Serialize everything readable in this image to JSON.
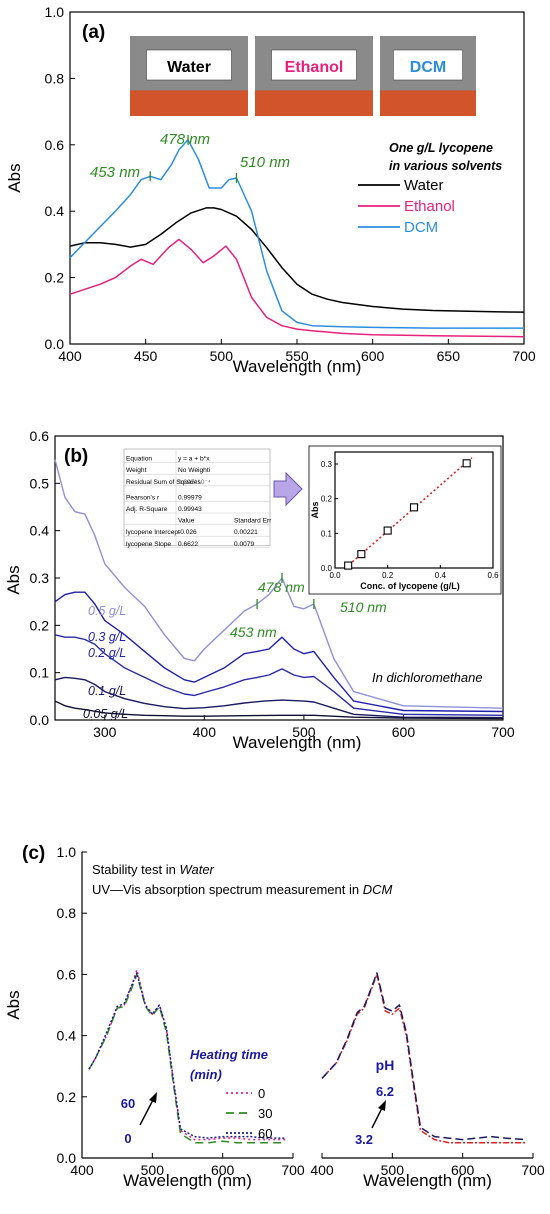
{
  "chart_data": [
    {
      "type": "line",
      "panel_label": "(a)",
      "xlabel": "Wavelength (nm)",
      "ylabel": "Abs",
      "xlim": [
        400,
        700
      ],
      "ylim": [
        0,
        1.0
      ],
      "x_ticks": [
        "400",
        "450",
        "500",
        "550",
        "600",
        "650",
        "700"
      ],
      "y_ticks": [
        "0.0",
        "0.2",
        "0.4",
        "0.6",
        "0.8",
        "1.0"
      ],
      "photo_labels": [
        "Water",
        "Ethanol",
        "DCM"
      ],
      "legend_title": [
        "One g/L lycopene",
        "in various solvents"
      ],
      "annotations": [
        "453 nm",
        "478 nm",
        "510 nm"
      ],
      "series": [
        {
          "name": "Water",
          "color": "#000000",
          "x": [
            400,
            410,
            420,
            430,
            440,
            450,
            460,
            470,
            480,
            490,
            495,
            500,
            510,
            520,
            530,
            540,
            550,
            560,
            570,
            580,
            600,
            620,
            640,
            660,
            680,
            700
          ],
          "y": [
            0.295,
            0.305,
            0.305,
            0.3,
            0.292,
            0.3,
            0.33,
            0.365,
            0.395,
            0.41,
            0.41,
            0.405,
            0.385,
            0.345,
            0.29,
            0.23,
            0.18,
            0.15,
            0.135,
            0.125,
            0.113,
            0.105,
            0.101,
            0.099,
            0.097,
            0.096
          ]
        },
        {
          "name": "Ethanol",
          "color": "#e8217b",
          "x": [
            400,
            420,
            430,
            440,
            447,
            455,
            465,
            472,
            480,
            488,
            495,
            503,
            510,
            520,
            530,
            540,
            550,
            560,
            580,
            600,
            640,
            700
          ],
          "y": [
            0.15,
            0.18,
            0.2,
            0.235,
            0.255,
            0.24,
            0.29,
            0.315,
            0.285,
            0.245,
            0.265,
            0.295,
            0.255,
            0.14,
            0.08,
            0.055,
            0.045,
            0.04,
            0.032,
            0.028,
            0.025,
            0.022
          ]
        },
        {
          "name": "DCM",
          "color": "#2a8ee0",
          "x": [
            400,
            415,
            430,
            440,
            447,
            453,
            460,
            467,
            472,
            478,
            485,
            492,
            500,
            505,
            510,
            520,
            530,
            540,
            550,
            560,
            580,
            600,
            640,
            700
          ],
          "y": [
            0.26,
            0.33,
            0.4,
            0.45,
            0.495,
            0.505,
            0.495,
            0.54,
            0.585,
            0.615,
            0.555,
            0.47,
            0.47,
            0.495,
            0.5,
            0.4,
            0.22,
            0.1,
            0.065,
            0.055,
            0.052,
            0.05,
            0.048,
            0.048
          ]
        }
      ]
    },
    {
      "type": "line",
      "panel_label": "(b)",
      "xlabel": "Wavelength (nm)",
      "ylabel": "Abs",
      "xlim": [
        250,
        700
      ],
      "ylim": [
        0,
        0.6
      ],
      "x_ticks": [
        "300",
        "400",
        "500",
        "600",
        "700"
      ],
      "y_ticks": [
        "0.0",
        "0.1",
        "0.2",
        "0.3",
        "0.4",
        "0.5",
        "0.6"
      ],
      "annotations": [
        "453 nm",
        "478 nm",
        "510 nm",
        "In dichloromethane"
      ],
      "curve_labels": [
        "0.5 g/L",
        "0.3 g/L",
        "0.2 g/L",
        "0.1 g/L",
        "0.05 g/L"
      ],
      "series": [
        {
          "name": "0.5 g/L",
          "color": "#8f8fdc",
          "x": [
            250,
            260,
            270,
            280,
            290,
            300,
            320,
            340,
            360,
            380,
            390,
            400,
            420,
            440,
            453,
            465,
            478,
            490,
            500,
            510,
            530,
            550,
            600,
            700
          ],
          "y": [
            0.55,
            0.47,
            0.44,
            0.435,
            0.39,
            0.33,
            0.28,
            0.24,
            0.18,
            0.13,
            0.125,
            0.15,
            0.19,
            0.23,
            0.245,
            0.265,
            0.3,
            0.24,
            0.235,
            0.245,
            0.13,
            0.06,
            0.03,
            0.025
          ]
        },
        {
          "name": "0.3 g/L",
          "color": "#2020b0",
          "x": [
            250,
            260,
            270,
            280,
            290,
            300,
            320,
            340,
            360,
            380,
            390,
            400,
            420,
            440,
            453,
            465,
            478,
            490,
            500,
            510,
            530,
            550,
            600,
            700
          ],
          "y": [
            0.25,
            0.265,
            0.27,
            0.27,
            0.245,
            0.21,
            0.18,
            0.145,
            0.11,
            0.085,
            0.08,
            0.09,
            0.11,
            0.14,
            0.145,
            0.15,
            0.175,
            0.15,
            0.14,
            0.145,
            0.09,
            0.04,
            0.02,
            0.018
          ]
        },
        {
          "name": "0.2 g/L",
          "color": "#2a2aa8",
          "x": [
            250,
            260,
            270,
            280,
            290,
            300,
            320,
            340,
            360,
            380,
            390,
            400,
            420,
            440,
            453,
            465,
            478,
            490,
            500,
            510,
            530,
            550,
            600,
            700
          ],
          "y": [
            0.18,
            0.175,
            0.175,
            0.17,
            0.16,
            0.14,
            0.11,
            0.09,
            0.07,
            0.055,
            0.052,
            0.058,
            0.07,
            0.085,
            0.09,
            0.095,
            0.108,
            0.095,
            0.09,
            0.092,
            0.06,
            0.025,
            0.012,
            0.01
          ]
        },
        {
          "name": "0.1 g/L",
          "color": "#1a1a60",
          "x": [
            250,
            260,
            270,
            280,
            290,
            300,
            320,
            340,
            360,
            380,
            400,
            420,
            440,
            460,
            478,
            500,
            510,
            530,
            550,
            600,
            700
          ],
          "y": [
            0.085,
            0.09,
            0.088,
            0.085,
            0.075,
            0.06,
            0.045,
            0.035,
            0.028,
            0.024,
            0.026,
            0.03,
            0.036,
            0.04,
            0.042,
            0.04,
            0.038,
            0.025,
            0.012,
            0.006,
            0.005
          ]
        },
        {
          "name": "0.05 g/L",
          "color": "#101030",
          "x": [
            250,
            260,
            270,
            280,
            300,
            320,
            340,
            360,
            380,
            400,
            440,
            478,
            510,
            550,
            600,
            700
          ],
          "y": [
            0.04,
            0.03,
            0.025,
            0.022,
            0.015,
            0.012,
            0.01,
            0.009,
            0.008,
            0.008,
            0.009,
            0.01,
            0.01,
            0.006,
            0.004,
            0.003
          ]
        }
      ]
    },
    {
      "type": "scatter",
      "inset": true,
      "xlabel": "Conc. of lycopene (g/L)",
      "ylabel": "Abs",
      "xlim": [
        0,
        0.6
      ],
      "ylim": [
        0,
        0.3
      ],
      "x_ticks": [
        "0.0",
        "0.2",
        "0.4",
        "0.6"
      ],
      "y_ticks": [
        "0.0",
        "0.1",
        "0.2",
        "0.3"
      ],
      "points": {
        "x": [
          0.05,
          0.1,
          0.2,
          0.3,
          0.5
        ],
        "y": [
          0.007,
          0.04,
          0.108,
          0.175,
          0.302
        ]
      },
      "fit": {
        "intercept": -0.026,
        "slope": 0.6622,
        "x_range": [
          0.04,
          0.52
        ],
        "color": "#e02020"
      },
      "fit_table": [
        [
          "Equation",
          "y = a + b*x",
          ""
        ],
        [
          "Weight",
          "No Weighti",
          ""
        ],
        [
          "Residual Sum of Squares",
          "2.395*10⁻⁴",
          ""
        ],
        [
          "Pearson's r",
          "0.99979",
          ""
        ],
        [
          "Adj. R-Square",
          "0.99943",
          ""
        ],
        [
          "",
          "Value",
          "Standard Err"
        ],
        [
          "lycopene Intercept",
          "-0.026",
          "0.00221"
        ],
        [
          "lycopene Slope",
          "0.6622",
          "0.0079"
        ]
      ]
    },
    {
      "type": "line",
      "panel_label": "(c)",
      "ylabel": "Abs",
      "ylim": [
        0,
        1.0
      ],
      "y_ticks": [
        "0.0",
        "0.2",
        "0.4",
        "0.6",
        "0.8",
        "1.0"
      ],
      "header_lines": [
        [
          "Stability test in ",
          "Water"
        ],
        [
          "UV—Vis absorption spectrum measurement in ",
          "DCM"
        ]
      ],
      "subplots": [
        {
          "xlabel": "Wavelength (nm)",
          "xlim": [
            400,
            700
          ],
          "x_ticks": [
            "400",
            "500",
            "600",
            "700"
          ],
          "legend_title": [
            "Heating time",
            "(min)"
          ],
          "legend": [
            "0",
            "30",
            "60"
          ],
          "arrow_labels": [
            "60",
            "0"
          ],
          "series": [
            {
              "name": "0",
              "color": "#e8217b",
              "dash": "2,3",
              "x": [
                410,
                420,
                435,
                450,
                460,
                470,
                478,
                490,
                500,
                510,
                520,
                530,
                540,
                560,
                580,
                600,
                620,
                640,
                660,
                690
              ],
              "y": [
                0.29,
                0.33,
                0.4,
                0.49,
                0.5,
                0.56,
                0.615,
                0.5,
                0.47,
                0.5,
                0.42,
                0.25,
                0.09,
                0.06,
                0.06,
                0.065,
                0.065,
                0.06,
                0.06,
                0.06
              ]
            },
            {
              "name": "30",
              "color": "#2e8b22",
              "dash": "8,5",
              "x": [
                410,
                420,
                435,
                450,
                460,
                470,
                478,
                490,
                500,
                510,
                520,
                530,
                540,
                560,
                580,
                600,
                620,
                640,
                660,
                690
              ],
              "y": [
                0.29,
                0.33,
                0.4,
                0.49,
                0.495,
                0.55,
                0.6,
                0.495,
                0.465,
                0.495,
                0.41,
                0.24,
                0.08,
                0.05,
                0.05,
                0.055,
                0.05,
                0.05,
                0.05,
                0.05
              ]
            },
            {
              "name": "60",
              "color": "#1a1aa0",
              "dash": "2,2",
              "x": [
                410,
                420,
                435,
                450,
                460,
                470,
                478,
                490,
                500,
                510,
                520,
                530,
                540,
                560,
                580,
                600,
                620,
                640,
                660,
                690
              ],
              "y": [
                0.29,
                0.33,
                0.41,
                0.495,
                0.505,
                0.56,
                0.605,
                0.5,
                0.47,
                0.5,
                0.425,
                0.255,
                0.095,
                0.07,
                0.065,
                0.07,
                0.07,
                0.07,
                0.065,
                0.065
              ]
            }
          ]
        },
        {
          "xlabel": "Wavelength (nm)",
          "xlim": [
            400,
            700
          ],
          "x_ticks": [
            "400",
            "500",
            "600",
            "700"
          ],
          "arrow_labels": [
            "pH",
            "6.2",
            "3.2"
          ],
          "series": [
            {
              "name": "3.2",
              "color": "#e02020",
              "dash": "6,2,2,2",
              "x": [
                400,
                420,
                435,
                450,
                460,
                470,
                478,
                490,
                500,
                510,
                520,
                530,
                540,
                560,
                580,
                600,
                620,
                640,
                660,
                690
              ],
              "y": [
                0.26,
                0.31,
                0.38,
                0.47,
                0.49,
                0.55,
                0.6,
                0.48,
                0.47,
                0.49,
                0.4,
                0.24,
                0.09,
                0.06,
                0.05,
                0.05,
                0.05,
                0.05,
                0.05,
                0.05
              ]
            },
            {
              "name": "6.2",
              "color": "#1a1a60",
              "dash": "8,4",
              "x": [
                400,
                420,
                435,
                450,
                460,
                470,
                478,
                490,
                500,
                510,
                520,
                530,
                540,
                560,
                580,
                600,
                620,
                640,
                660,
                690
              ],
              "y": [
                0.26,
                0.31,
                0.385,
                0.475,
                0.495,
                0.555,
                0.605,
                0.49,
                0.48,
                0.5,
                0.41,
                0.25,
                0.1,
                0.07,
                0.065,
                0.06,
                0.065,
                0.07,
                0.065,
                0.06
              ]
            }
          ]
        }
      ]
    }
  ]
}
